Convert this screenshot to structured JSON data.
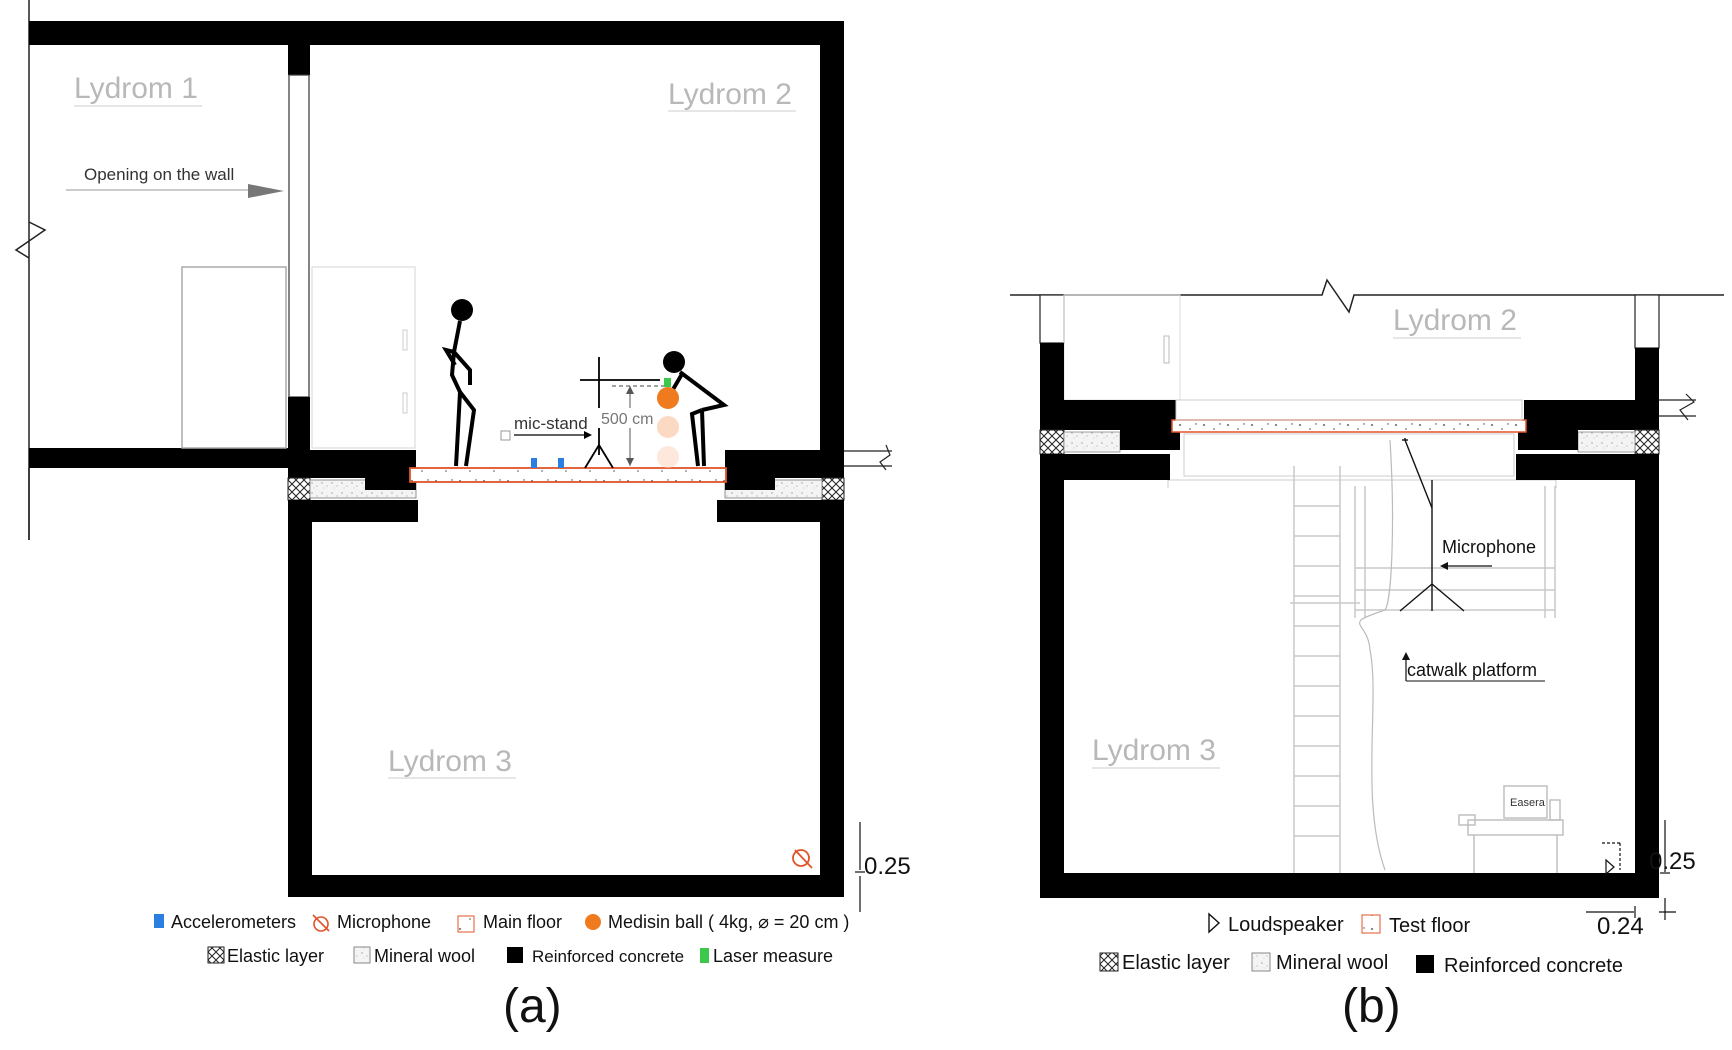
{
  "colors": {
    "concrete": "#000000",
    "test_floor_edge": "#e0542a",
    "medicine_ball": "#f07a1e",
    "medicine_ball_ghost": "#fbd9c3",
    "accelerometer": "#2a7fe0",
    "laser": "#3cc84a",
    "label_gray": "#b8b8b8",
    "line_gray": "#c8c8c8"
  },
  "panel_a": {
    "caption": "(a)",
    "rooms": {
      "lydrom1": "Lydrom 1",
      "lydrom2": "Lydrom 2",
      "lydrom3": "Lydrom 3"
    },
    "opening_label": "Opening on the wall",
    "mic_stand_label": "mic-stand",
    "drop_height": "500 cm",
    "dimension": "0.25",
    "legend": {
      "accelerometers": "Accelerometers",
      "microphone": "Microphone",
      "main_floor": "Main floor",
      "medicine_ball": "Medisin ball ( 4kg, ⌀ = 20 cm )",
      "elastic_layer": "Elastic layer",
      "mineral_wool": "Mineral wool",
      "reinforced_concrete": "Reinforced concrete",
      "laser_measure": "Laser measure"
    }
  },
  "panel_b": {
    "caption": "(b)",
    "rooms": {
      "lydrom2": "Lydrom 2",
      "lydrom3": "Lydrom 3"
    },
    "microphone_label": "Microphone",
    "catwalk_label": "catwalk platform",
    "device_label": "Easera",
    "dimension_vertical": "0.25",
    "dimension_horizontal": "0.24",
    "legend": {
      "loudspeaker": "Loudspeaker",
      "test_floor": "Test floor",
      "elastic_layer": "Elastic layer",
      "mineral_wool": "Mineral wool",
      "reinforced_concrete": "Reinforced concrete"
    }
  }
}
